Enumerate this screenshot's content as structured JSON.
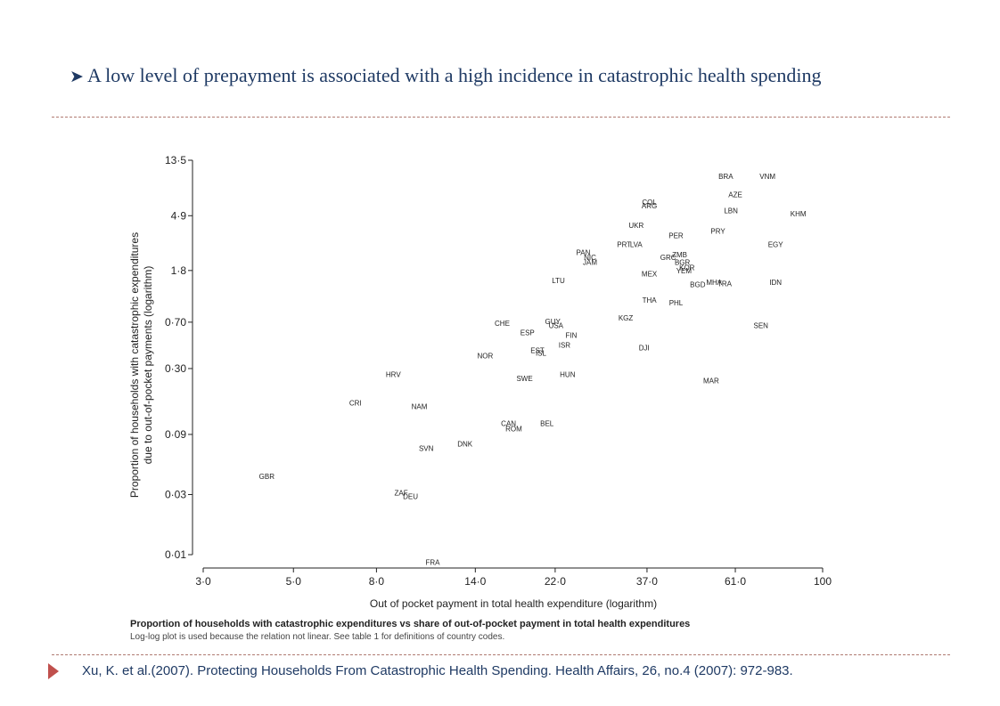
{
  "bullet": {
    "icon": "arrow-bullet-icon",
    "text": "A low level of prepayment is associated with a high incidence in catastrophic health spending"
  },
  "source": {
    "icon": "triangle-bullet-icon",
    "text": "Xu, K. et al.(2007).  Protecting Households From Catastrophic Health Spending. Health Affairs, 26, no.4 (2007): 972-983."
  },
  "colors": {
    "bullet_text": "#1f3a64",
    "divider": "#b07a72",
    "source_marker": "#c0504d"
  },
  "chart_data": {
    "type": "scatter",
    "title": "Proportion of households with catastrophic expenditures vs share of out-of-pocket payment in total health expenditures",
    "subtitle": "Log-log plot is used because the relation not linear. See table 1 for definitions of country codes.",
    "xlabel": "Out of pocket payment in total health expenditure (logarithm)",
    "ylabel": "Proportion of households with catastrophic expenditures due to out-of-pocket payments (logarithm)",
    "x_scale": "log",
    "y_scale": "log",
    "grid": false,
    "x_ticks": [
      {
        "value": 3,
        "label": "3·0"
      },
      {
        "value": 5,
        "label": "5·0"
      },
      {
        "value": 8,
        "label": "8·0"
      },
      {
        "value": 14,
        "label": "14·0"
      },
      {
        "value": 22,
        "label": "22·0"
      },
      {
        "value": 37,
        "label": "37·0"
      },
      {
        "value": 61,
        "label": "61·0"
      },
      {
        "value": 100,
        "label": "100"
      }
    ],
    "y_ticks": [
      {
        "value": 0.01,
        "label": "0·01"
      },
      {
        "value": 0.03,
        "label": "0·03"
      },
      {
        "value": 0.09,
        "label": "0·09"
      },
      {
        "value": 0.3,
        "label": "0·30"
      },
      {
        "value": 0.7,
        "label": "0·70"
      },
      {
        "value": 1.8,
        "label": "1·8"
      },
      {
        "value": 4.9,
        "label": "4·9"
      },
      {
        "value": 13.5,
        "label": "13·5"
      }
    ],
    "points": [
      {
        "label": "BRA",
        "x": 57.8,
        "y": 10.1
      },
      {
        "label": "VNM",
        "x": 73.2,
        "y": 10.1
      },
      {
        "label": "AZE",
        "x": 61,
        "y": 7.2
      },
      {
        "label": "COL",
        "x": 37.5,
        "y": 6.3
      },
      {
        "label": "ARG",
        "x": 37.5,
        "y": 5.9
      },
      {
        "label": "LBN",
        "x": 59.5,
        "y": 5.4
      },
      {
        "label": "KHM",
        "x": 87.1,
        "y": 5.1
      },
      {
        "label": "UKR",
        "x": 34.8,
        "y": 4.1
      },
      {
        "label": "PRY",
        "x": 55.3,
        "y": 3.7
      },
      {
        "label": "PER",
        "x": 43.6,
        "y": 3.4
      },
      {
        "label": "EGY",
        "x": 76.6,
        "y": 2.9
      },
      {
        "label": "PRT",
        "x": 32.5,
        "y": 2.9
      },
      {
        "label": "LVA",
        "x": 34.8,
        "y": 2.9
      },
      {
        "label": "PAN",
        "x": 25.8,
        "y": 2.5
      },
      {
        "label": "ZMB",
        "x": 44.5,
        "y": 2.4
      },
      {
        "label": "NIC",
        "x": 26.8,
        "y": 2.3
      },
      {
        "label": "GRC",
        "x": 41.7,
        "y": 2.3
      },
      {
        "label": "BGR",
        "x": 45.2,
        "y": 2.1
      },
      {
        "label": "JAM",
        "x": 26.8,
        "y": 2.1
      },
      {
        "label": "KOR",
        "x": 46.4,
        "y": 1.9
      },
      {
        "label": "YEM",
        "x": 45.6,
        "y": 1.8
      },
      {
        "label": "MEX",
        "x": 37.5,
        "y": 1.7
      },
      {
        "label": "LTU",
        "x": 22.4,
        "y": 1.5
      },
      {
        "label": "IDN",
        "x": 76.6,
        "y": 1.45
      },
      {
        "label": "MHA",
        "x": 54.1,
        "y": 1.45
      },
      {
        "label": "BGD",
        "x": 49.3,
        "y": 1.4
      },
      {
        "label": "TRA",
        "x": 57.4,
        "y": 1.42
      },
      {
        "label": "THA",
        "x": 37.5,
        "y": 1.05
      },
      {
        "label": "PHL",
        "x": 43.6,
        "y": 1.0
      },
      {
        "label": "KGZ",
        "x": 32.8,
        "y": 0.76
      },
      {
        "label": "CHE",
        "x": 16.3,
        "y": 0.69
      },
      {
        "label": "GUY",
        "x": 21.7,
        "y": 0.71
      },
      {
        "label": "USA",
        "x": 22.1,
        "y": 0.66
      },
      {
        "label": "SEN",
        "x": 70.5,
        "y": 0.66
      },
      {
        "label": "ESP",
        "x": 18.8,
        "y": 0.58
      },
      {
        "label": "FIN",
        "x": 24.1,
        "y": 0.55
      },
      {
        "label": "ISR",
        "x": 23.2,
        "y": 0.46
      },
      {
        "label": "EST",
        "x": 19.9,
        "y": 0.42
      },
      {
        "label": "ISL",
        "x": 20.3,
        "y": 0.4
      },
      {
        "label": "DJI",
        "x": 36.4,
        "y": 0.44
      },
      {
        "label": "NOR",
        "x": 14.8,
        "y": 0.38
      },
      {
        "label": "HRV",
        "x": 8.8,
        "y": 0.27
      },
      {
        "label": "HUN",
        "x": 23.6,
        "y": 0.27
      },
      {
        "label": "SWE",
        "x": 18.5,
        "y": 0.25
      },
      {
        "label": "MAR",
        "x": 53.2,
        "y": 0.24
      },
      {
        "label": "CRI",
        "x": 7.1,
        "y": 0.16
      },
      {
        "label": "NAM",
        "x": 10.2,
        "y": 0.15
      },
      {
        "label": "BEL",
        "x": 21,
        "y": 0.11
      },
      {
        "label": "CAN",
        "x": 16.9,
        "y": 0.11
      },
      {
        "label": "ROM",
        "x": 17.4,
        "y": 0.1
      },
      {
        "label": "DNK",
        "x": 13.2,
        "y": 0.076
      },
      {
        "label": "SVN",
        "x": 10.6,
        "y": 0.07
      },
      {
        "label": "GBR",
        "x": 4.3,
        "y": 0.042
      },
      {
        "label": "ZAF",
        "x": 9.2,
        "y": 0.031
      },
      {
        "label": "DEU",
        "x": 9.7,
        "y": 0.029
      },
      {
        "label": "FRA",
        "x": 11.0,
        "y": 0.0087
      }
    ]
  }
}
